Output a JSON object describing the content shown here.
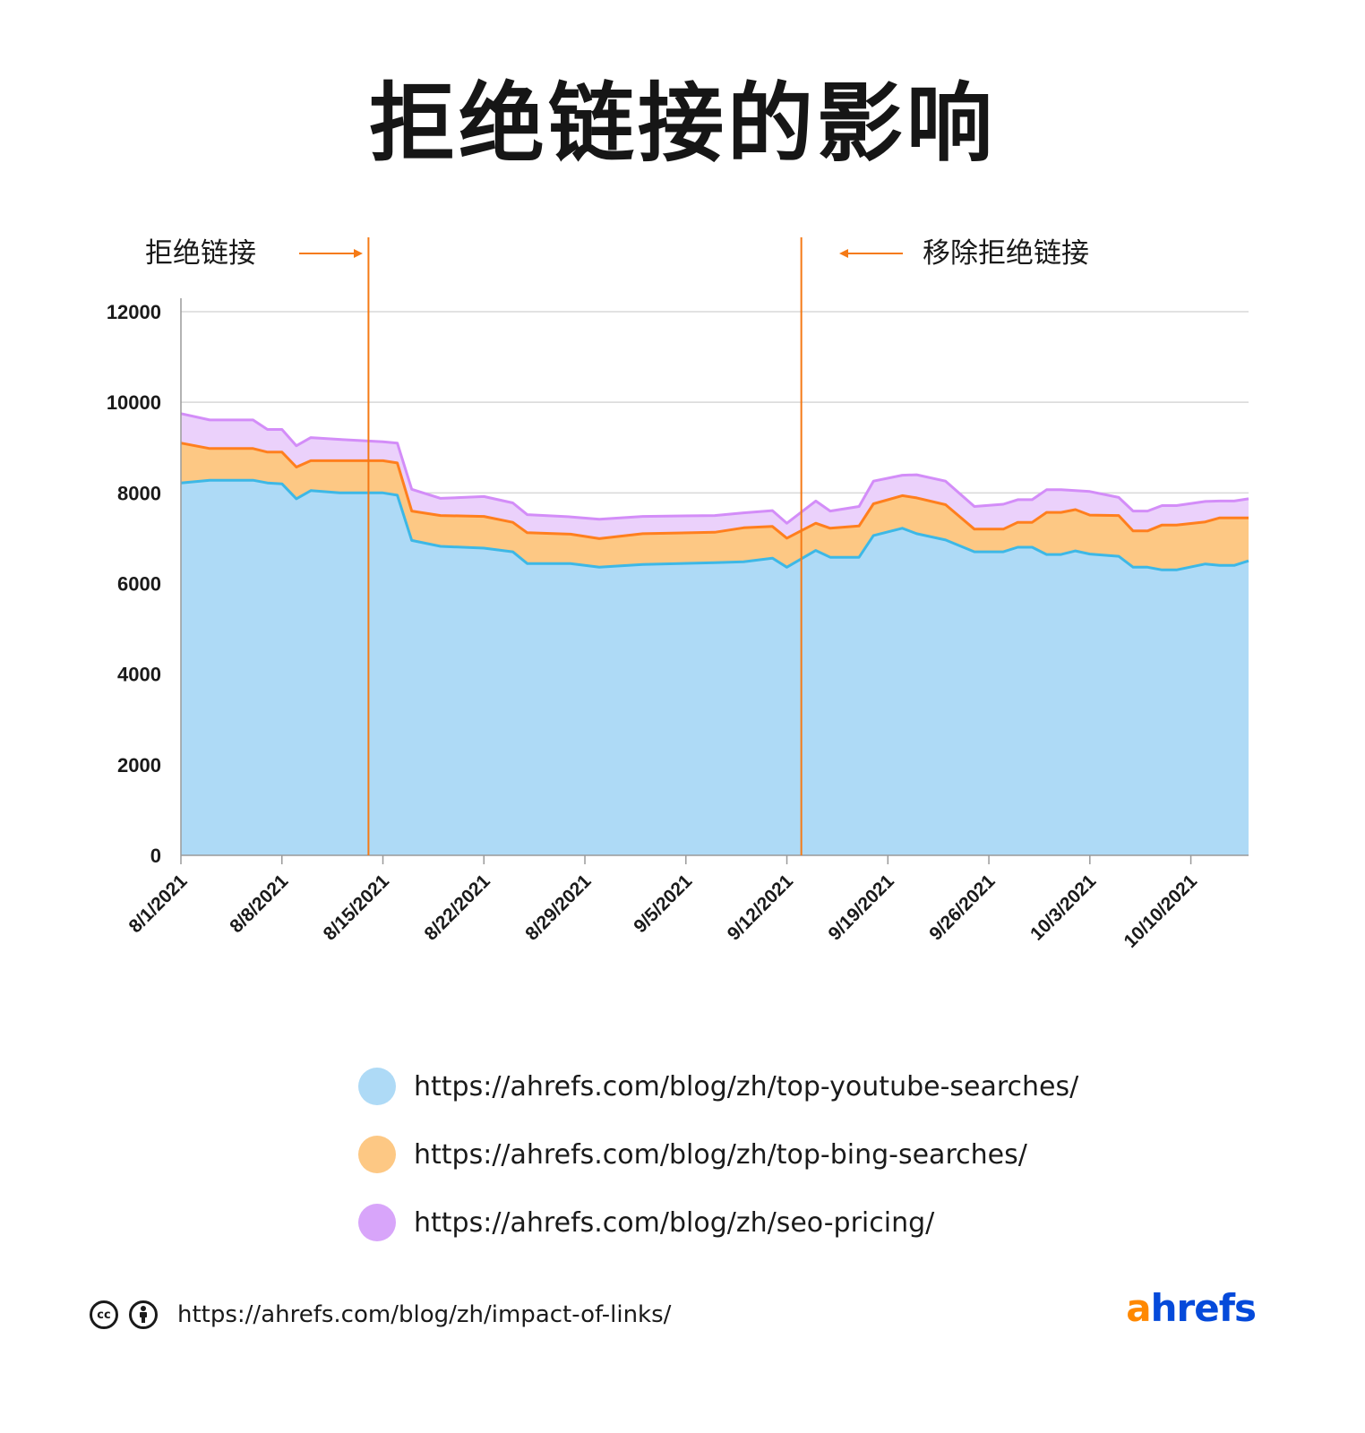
{
  "title": "拒绝链接的影响",
  "annotations": {
    "left_label": "拒绝链接",
    "right_label": "移除拒绝链接"
  },
  "colors": {
    "series_fill": [
      "#aedaf6",
      "#fdc884",
      "#ebd1fb"
    ],
    "series_line": [
      "#3db8e6",
      "#ff7f1e",
      "#d38df8"
    ],
    "legend_swatch": [
      "#aedaf6",
      "#fdc884",
      "#d8a5fa"
    ],
    "annotation": "#f57a16",
    "brand_a": "#ff8800",
    "brand_rest": "#054ada"
  },
  "chart_data": {
    "type": "area",
    "stacked": true,
    "x_start": "8/1/2021",
    "x_end": "10/14/2021",
    "categories": [
      "8/1/2021",
      "8/8/2021",
      "8/15/2021",
      "8/22/2021",
      "8/29/2021",
      "9/5/2021",
      "9/12/2021",
      "9/19/2021",
      "9/26/2021",
      "10/3/2021",
      "10/10/2021"
    ],
    "y_ticks": [
      0,
      2000,
      4000,
      6000,
      8000,
      10000,
      12000
    ],
    "ylim": [
      0,
      12000
    ],
    "grid": true,
    "legend_position": "bottom",
    "annotations": [
      {
        "date": "8/14/2021",
        "label": "拒绝链接",
        "arrow": "right"
      },
      {
        "date": "9/13/2021",
        "label": "移除拒绝链接",
        "arrow": "left"
      }
    ],
    "series": [
      {
        "name": "https://ahrefs.com/blog/zh/top-youtube-searches/",
        "points": [
          [
            "8/1/2021",
            8220
          ],
          [
            "8/3/2021",
            8280
          ],
          [
            "8/6/2021",
            8280
          ],
          [
            "8/7/2021",
            8220
          ],
          [
            "8/8/2021",
            8200
          ],
          [
            "8/9/2021",
            7870
          ],
          [
            "8/10/2021",
            8050
          ],
          [
            "8/12/2021",
            8000
          ],
          [
            "8/15/2021",
            8000
          ],
          [
            "8/16/2021",
            7950
          ],
          [
            "8/17/2021",
            6950
          ],
          [
            "8/19/2021",
            6820
          ],
          [
            "8/22/2021",
            6780
          ],
          [
            "8/24/2021",
            6700
          ],
          [
            "8/25/2021",
            6440
          ],
          [
            "8/28/2021",
            6440
          ],
          [
            "8/30/2021",
            6360
          ],
          [
            "9/2/2021",
            6420
          ],
          [
            "9/7/2021",
            6460
          ],
          [
            "9/9/2021",
            6480
          ],
          [
            "9/11/2021",
            6560
          ],
          [
            "9/12/2021",
            6360
          ],
          [
            "9/14/2021",
            6730
          ],
          [
            "9/15/2021",
            6580
          ],
          [
            "9/17/2021",
            6580
          ],
          [
            "9/18/2021",
            7060
          ],
          [
            "9/20/2021",
            7220
          ],
          [
            "9/21/2021",
            7100
          ],
          [
            "9/23/2021",
            6960
          ],
          [
            "9/25/2021",
            6700
          ],
          [
            "9/27/2021",
            6700
          ],
          [
            "9/28/2021",
            6800
          ],
          [
            "9/29/2021",
            6800
          ],
          [
            "9/30/2021",
            6640
          ],
          [
            "10/1/2021",
            6640
          ],
          [
            "10/2/2021",
            6720
          ],
          [
            "10/3/2021",
            6650
          ],
          [
            "10/5/2021",
            6600
          ],
          [
            "10/6/2021",
            6360
          ],
          [
            "10/7/2021",
            6360
          ],
          [
            "10/8/2021",
            6300
          ],
          [
            "10/9/2021",
            6300
          ],
          [
            "10/11/2021",
            6430
          ],
          [
            "10/12/2021",
            6400
          ],
          [
            "10/13/2021",
            6400
          ],
          [
            "10/14/2021",
            6500
          ]
        ]
      },
      {
        "name": "https://ahrefs.com/blog/zh/top-bing-searches/",
        "points": [
          [
            "8/1/2021",
            880
          ],
          [
            "8/3/2021",
            700
          ],
          [
            "8/6/2021",
            700
          ],
          [
            "8/7/2021",
            680
          ],
          [
            "8/8/2021",
            700
          ],
          [
            "8/9/2021",
            700
          ],
          [
            "8/10/2021",
            660
          ],
          [
            "8/12/2021",
            710
          ],
          [
            "8/15/2021",
            710
          ],
          [
            "8/16/2021",
            710
          ],
          [
            "8/17/2021",
            650
          ],
          [
            "8/19/2021",
            680
          ],
          [
            "8/22/2021",
            700
          ],
          [
            "8/24/2021",
            650
          ],
          [
            "8/25/2021",
            680
          ],
          [
            "8/28/2021",
            650
          ],
          [
            "8/30/2021",
            630
          ],
          [
            "9/2/2021",
            680
          ],
          [
            "9/7/2021",
            670
          ],
          [
            "9/9/2021",
            750
          ],
          [
            "9/11/2021",
            700
          ],
          [
            "9/12/2021",
            640
          ],
          [
            "9/14/2021",
            600
          ],
          [
            "9/15/2021",
            640
          ],
          [
            "9/17/2021",
            690
          ],
          [
            "9/18/2021",
            700
          ],
          [
            "9/20/2021",
            720
          ],
          [
            "9/21/2021",
            790
          ],
          [
            "9/23/2021",
            780
          ],
          [
            "9/25/2021",
            500
          ],
          [
            "9/27/2021",
            500
          ],
          [
            "9/28/2021",
            550
          ],
          [
            "9/29/2021",
            550
          ],
          [
            "9/30/2021",
            930
          ],
          [
            "10/1/2021",
            930
          ],
          [
            "10/2/2021",
            910
          ],
          [
            "10/3/2021",
            860
          ],
          [
            "10/5/2021",
            900
          ],
          [
            "10/6/2021",
            800
          ],
          [
            "10/7/2021",
            800
          ],
          [
            "10/8/2021",
            990
          ],
          [
            "10/9/2021",
            990
          ],
          [
            "10/11/2021",
            930
          ],
          [
            "10/12/2021",
            1050
          ],
          [
            "10/13/2021",
            1050
          ],
          [
            "10/14/2021",
            950
          ]
        ]
      },
      {
        "name": "https://ahrefs.com/blog/zh/seo-pricing/",
        "points": [
          [
            "8/1/2021",
            650
          ],
          [
            "8/3/2021",
            630
          ],
          [
            "8/6/2021",
            630
          ],
          [
            "8/7/2021",
            500
          ],
          [
            "8/8/2021",
            500
          ],
          [
            "8/9/2021",
            470
          ],
          [
            "8/10/2021",
            510
          ],
          [
            "8/12/2021",
            470
          ],
          [
            "8/15/2021",
            420
          ],
          [
            "8/16/2021",
            440
          ],
          [
            "8/17/2021",
            480
          ],
          [
            "8/19/2021",
            380
          ],
          [
            "8/22/2021",
            440
          ],
          [
            "8/24/2021",
            430
          ],
          [
            "8/25/2021",
            400
          ],
          [
            "8/28/2021",
            380
          ],
          [
            "8/30/2021",
            430
          ],
          [
            "9/2/2021",
            380
          ],
          [
            "9/7/2021",
            370
          ],
          [
            "9/9/2021",
            330
          ],
          [
            "9/11/2021",
            350
          ],
          [
            "9/12/2021",
            330
          ],
          [
            "9/14/2021",
            490
          ],
          [
            "9/15/2021",
            380
          ],
          [
            "9/17/2021",
            430
          ],
          [
            "9/18/2021",
            500
          ],
          [
            "9/20/2021",
            450
          ],
          [
            "9/21/2021",
            510
          ],
          [
            "9/23/2021",
            520
          ],
          [
            "9/25/2021",
            500
          ],
          [
            "9/27/2021",
            550
          ],
          [
            "9/28/2021",
            500
          ],
          [
            "9/29/2021",
            500
          ],
          [
            "9/30/2021",
            500
          ],
          [
            "10/1/2021",
            500
          ],
          [
            "10/2/2021",
            420
          ],
          [
            "10/3/2021",
            520
          ],
          [
            "10/5/2021",
            400
          ],
          [
            "10/6/2021",
            440
          ],
          [
            "10/7/2021",
            440
          ],
          [
            "10/8/2021",
            430
          ],
          [
            "10/9/2021",
            430
          ],
          [
            "10/11/2021",
            450
          ],
          [
            "10/12/2021",
            370
          ],
          [
            "10/13/2021",
            370
          ],
          [
            "10/14/2021",
            420
          ]
        ]
      }
    ]
  },
  "legend": {
    "items": [
      "https://ahrefs.com/blog/zh/top-youtube-searches/",
      "https://ahrefs.com/blog/zh/top-bing-searches/",
      "https://ahrefs.com/blog/zh/seo-pricing/"
    ]
  },
  "footer": {
    "cc_icon": "cc-icon",
    "by_icon": "by-icon",
    "url": "https://ahrefs.com/blog/zh/impact-of-links/"
  },
  "brand": {
    "first_letter": "a",
    "rest": "hrefs"
  }
}
